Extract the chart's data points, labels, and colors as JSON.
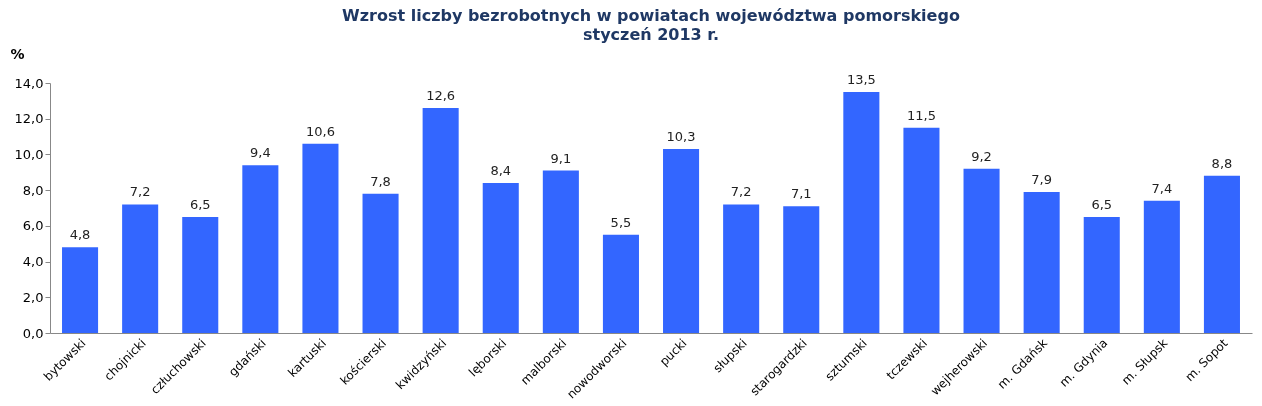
{
  "chart_data": {
    "type": "bar",
    "title": "Wzrost liczby bezrobotnych w powiatach województwa pomorskiego",
    "subtitle": "styczeń 2013 r.",
    "ylabel": "%",
    "categories": [
      "bytowski",
      "chojnicki",
      "człuchowski",
      "gdański",
      "kartuski",
      "kościerski",
      "kwidzyński",
      "lęborski",
      "malborski",
      "nowodworski",
      "pucki",
      "słupski",
      "starogardzki",
      "sztumski",
      "tczewski",
      "wejherowski",
      "m. Gdańsk",
      "m. Gdynia",
      "m. Słupsk",
      "m. Sopot"
    ],
    "values": [
      4.8,
      7.2,
      6.5,
      9.4,
      10.6,
      7.8,
      12.6,
      8.4,
      9.1,
      5.5,
      10.3,
      7.2,
      7.1,
      13.5,
      11.5,
      9.2,
      7.9,
      6.5,
      7.4,
      8.8
    ],
    "value_labels": [
      "4,8",
      "7,2",
      "6,5",
      "9,4",
      "10,6",
      "7,8",
      "12,6",
      "8,4",
      "9,1",
      "5,5",
      "10,3",
      "7,2",
      "7,1",
      "13,5",
      "11,5",
      "9,2",
      "7,9",
      "6,5",
      "7,4",
      "8,8"
    ],
    "color": "#3366ff",
    "ylim": [
      0,
      14
    ],
    "yticks": [
      {
        "value": 0,
        "label": "0,0"
      },
      {
        "value": 2,
        "label": "2,0"
      },
      {
        "value": 4,
        "label": "4,0"
      },
      {
        "value": 6,
        "label": "6,0"
      },
      {
        "value": 8,
        "label": "8,0"
      },
      {
        "value": 10,
        "label": "10,0"
      },
      {
        "value": 12,
        "label": "12,0"
      },
      {
        "value": 14,
        "label": "14,0"
      }
    ],
    "grid": false
  }
}
